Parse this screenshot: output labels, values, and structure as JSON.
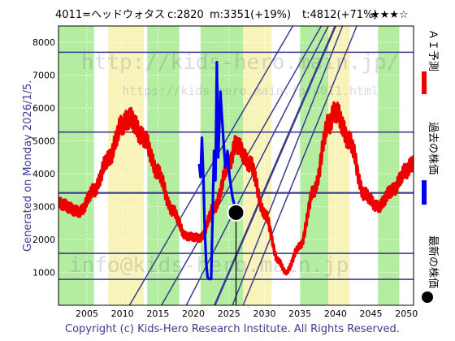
{
  "header": {
    "ticker": "4011=ヘッドウォタス",
    "current": "c:2820",
    "mid": "m:3351(+19%)",
    "target": "t:4812(+71%)",
    "rating": "★★★☆"
  },
  "side_labels": {
    "ai_forecast": "ＡＩ予測",
    "past_price": "過去の株価",
    "latest_price": "最新の株価"
  },
  "generated": "Generated on Monday 2026/1/5.",
  "copyright": "Copyright (c) Kids-Hero Research Institute. All Rights Reserved.",
  "watermarks": {
    "site": "http://kids-hero.main.jp/",
    "page": "https://kids-hero.main.jp/4011.html",
    "mail": "info@kids-hero.main.jp"
  },
  "colors": {
    "forecast": "#ee0000",
    "past": "#0000ee",
    "latest": "#000000",
    "lines": "#3b3b8f",
    "green_band": "#a6ea8e",
    "yellow_band": "#f7f2ad"
  },
  "chart_data": {
    "type": "line",
    "x_range": [
      2001,
      2051
    ],
    "ylim": [
      0,
      8500
    ],
    "x_ticks": [
      2005,
      2010,
      2015,
      2020,
      2025,
      2030,
      2035,
      2040,
      2045,
      2050
    ],
    "y_ticks": [
      1000,
      2000,
      3000,
      4000,
      5000,
      6000,
      7000,
      8000
    ],
    "horizontal_levels": [
      7700,
      5270,
      3420,
      1580,
      790
    ],
    "latest_point": {
      "x": 2026.0,
      "y": 2820
    },
    "series": [
      {
        "name": "ＡＩ予測",
        "style": "thick oscillating red line",
        "x": [
          2001,
          2004,
          2006,
          2008,
          2010,
          2011,
          2013,
          2015,
          2017,
          2019,
          2021,
          2023,
          2025,
          2026,
          2028,
          2030,
          2032,
          2033,
          2035,
          2037,
          2039,
          2040,
          2042,
          2044,
          2046,
          2048,
          2050,
          2051
        ],
        "y": [
          3100,
          2850,
          3500,
          4450,
          5500,
          5700,
          5100,
          4050,
          2900,
          2100,
          2050,
          3000,
          4300,
          4900,
          4300,
          2800,
          1350,
          1000,
          1800,
          3500,
          5500,
          5900,
          5000,
          3400,
          3000,
          3500,
          4100,
          4350
        ]
      },
      {
        "name": "過去の株価",
        "style": "thick blue line",
        "x": [
          2020.8,
          2021.0,
          2021.2,
          2021.4,
          2021.6,
          2021.8,
          2022.0,
          2022.2,
          2022.5,
          2022.9,
          2023.1,
          2023.3,
          2023.5,
          2023.8,
          2024.0,
          2024.3,
          2024.5,
          2024.8,
          2025.1,
          2025.5,
          2026.0
        ],
        "y": [
          4300,
          3900,
          5100,
          3900,
          2300,
          1300,
          850,
          800,
          800,
          4700,
          3800,
          7400,
          4500,
          6500,
          5800,
          4800,
          4200,
          4700,
          3900,
          3300,
          2820
        ]
      }
    ],
    "bands": [
      {
        "kind": "green",
        "from": 2001,
        "to": 2006
      },
      {
        "kind": "yellow",
        "from": 2008,
        "to": 2013
      },
      {
        "kind": "green",
        "from": 2013.5,
        "to": 2018
      },
      {
        "kind": "green",
        "from": 2021,
        "to": 2027
      },
      {
        "kind": "yellow",
        "from": 2027,
        "to": 2031
      },
      {
        "kind": "green",
        "from": 2035,
        "to": 2039
      },
      {
        "kind": "yellow",
        "from": 2039,
        "to": 2042
      },
      {
        "kind": "green",
        "from": 2046,
        "to": 2049
      }
    ],
    "diagonal_lines": [
      {
        "x": [
          2011,
          2034
        ],
        "y": [
          0,
          8500
        ]
      },
      {
        "x": [
          2015.5,
          2038
        ],
        "y": [
          0,
          8500
        ]
      },
      {
        "x": [
          2019,
          2039
        ],
        "y": [
          0,
          8500
        ]
      },
      {
        "x": [
          2023,
          2040
        ],
        "y": [
          0,
          8500
        ]
      },
      {
        "x": [
          2025.5,
          2041
        ],
        "y": [
          0,
          8500
        ]
      },
      {
        "x": [
          2027,
          2043
        ],
        "y": [
          0,
          8500
        ]
      }
    ]
  }
}
